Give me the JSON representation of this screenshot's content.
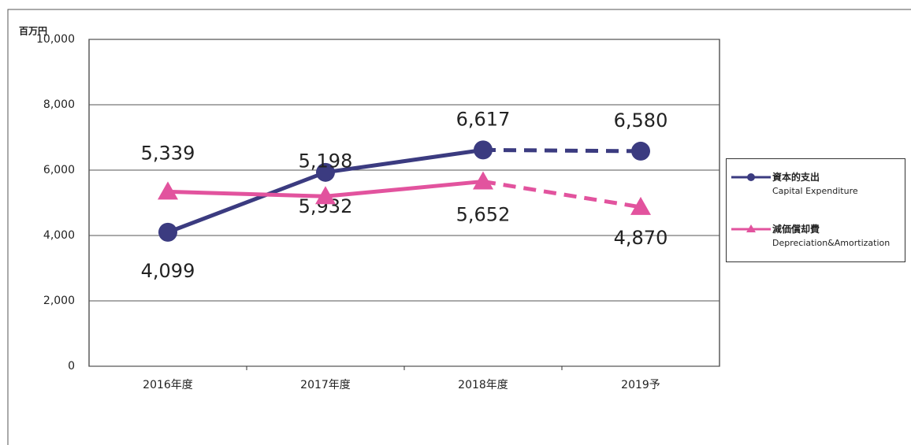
{
  "chart_data": {
    "type": "line",
    "y_unit": "百万円",
    "categories": [
      "2016年度",
      "2017年度",
      "2018年度",
      "2019予"
    ],
    "series": [
      {
        "name": "資本的支出",
        "name_en": "Capital Expenditure",
        "color": "#3b3b80",
        "marker": "circle",
        "values": [
          4099,
          5932,
          6617,
          6580
        ],
        "value_labels": [
          "4,099",
          "5,932",
          "6,617",
          "6,580"
        ]
      },
      {
        "name": "減価償却費",
        "name_en": "Depreciation&Amortization",
        "color": "#e2539e",
        "marker": "triangle",
        "values": [
          5339,
          5198,
          5652,
          4870
        ],
        "value_labels": [
          "5,339",
          "5,198",
          "5,652",
          "4,870"
        ]
      }
    ],
    "ylim": [
      0,
      10000
    ],
    "yticks": [
      0,
      {
        "value": 2000,
        "label": "2,000"
      },
      {
        "value": 4000,
        "label": "4,000"
      },
      {
        "value": 6000,
        "label": "6,000"
      },
      {
        "value": 8000,
        "label": "8,000"
      },
      {
        "value": 10000,
        "label": "10,000"
      }
    ],
    "grid": true,
    "legend": "right"
  }
}
